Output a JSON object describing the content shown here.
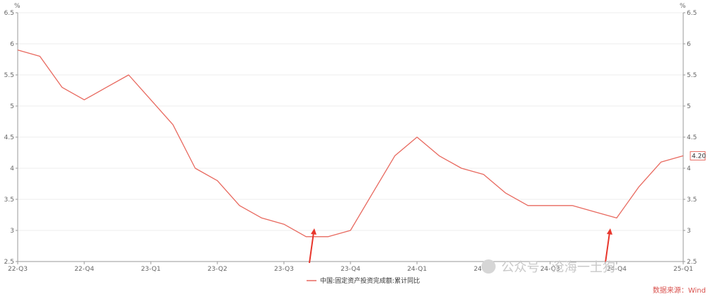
{
  "chart_data": {
    "type": "line",
    "units": {
      "left": "%",
      "right": "%"
    },
    "ylim": [
      2.5,
      6.5
    ],
    "y_ticks": [
      "2.5",
      "3",
      "3.5",
      "4",
      "4.5",
      "5",
      "5.5",
      "6",
      "6.5"
    ],
    "x_ticks": [
      "22-Q3",
      "22-Q4",
      "23-Q1",
      "23-Q2",
      "23-Q3",
      "23-Q4",
      "24-Q1",
      "24-Q2",
      "24-Q3",
      "24-Q4",
      "25-Q1"
    ],
    "x_tick_positions": [
      0,
      3,
      6,
      9,
      12,
      15,
      18,
      21,
      24,
      27,
      30
    ],
    "grid": true,
    "legend_position": "bottom",
    "series": [
      {
        "name": "中国:固定资产投资完成额:累计同比",
        "color": "#e8695f",
        "values": [
          5.9,
          5.8,
          5.3,
          5.1,
          5.3,
          5.5,
          5.1,
          4.7,
          4.0,
          3.8,
          3.4,
          3.2,
          3.1,
          2.9,
          2.9,
          3.0,
          3.6,
          4.2,
          4.5,
          4.2,
          4.0,
          3.9,
          3.6,
          3.4,
          3.4,
          3.4,
          3.3,
          3.2,
          3.7,
          4.1,
          4.2
        ]
      }
    ],
    "last_value_label": "4.20",
    "annotations": [
      {
        "type": "arrow",
        "near_x_label": "23-Q3",
        "color": "#e8362c"
      },
      {
        "type": "arrow",
        "near_x_label": "24-Q4",
        "color": "#e8362c"
      }
    ]
  },
  "source": "数据来源：Wind",
  "watermark": "公众号 · 沧海一土狗",
  "colors": {
    "axis": "#999999",
    "grid": "#eeeeee",
    "source": "#d9534f",
    "arrow": "#e8362c"
  }
}
